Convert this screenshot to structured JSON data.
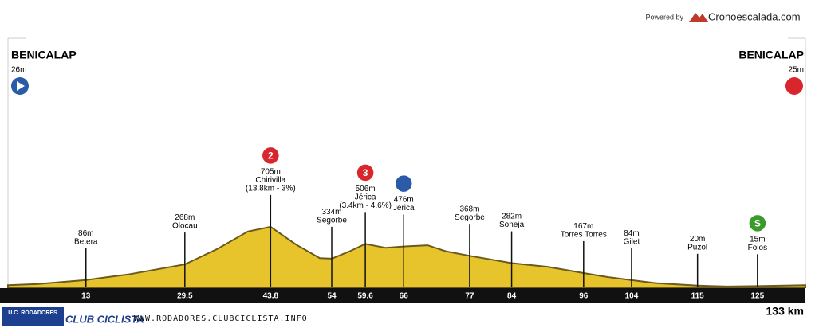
{
  "chart_data": {
    "type": "profile",
    "powered_by": "Powered by",
    "brand": "Cronoescalada.com",
    "start": {
      "name": "BENICALAP",
      "altitude": "26m"
    },
    "finish": {
      "name": "BENICALAP",
      "altitude": "25m"
    },
    "total": "133 km",
    "xlim": [
      0,
      133
    ],
    "ylim": [
      0,
      2880
    ],
    "color": "#e8c42c",
    "x": [
      0,
      5,
      13,
      20,
      29.5,
      35,
      40,
      43.8,
      48,
      52,
      54,
      57,
      59.6,
      63,
      66,
      70,
      73,
      77,
      84,
      90,
      96,
      100,
      104,
      108,
      115,
      120,
      125,
      133
    ],
    "values": [
      26,
      40,
      86,
      150,
      268,
      450,
      650,
      705,
      500,
      340,
      334,
      420,
      506,
      460,
      476,
      490,
      420,
      368,
      282,
      240,
      167,
      120,
      84,
      50,
      20,
      10,
      15,
      25
    ],
    "waypoints": [
      {
        "km": 13,
        "lines": [
          "86m",
          "Betera"
        ]
      },
      {
        "km": 29.5,
        "lines": [
          "268m",
          "Olocau"
        ]
      },
      {
        "km": 43.8,
        "lines": [
          "705m",
          "Chirivilla",
          "(13.8km - 3%)"
        ],
        "badge": "2",
        "badge_color": "#d9262c"
      },
      {
        "km": 54,
        "lines": [
          "334m",
          "Segorbe"
        ]
      },
      {
        "km": 59.6,
        "lines": [
          "506m",
          "Jérica",
          "(3.4km - 4.6%)"
        ],
        "badge": "3",
        "badge_color": "#d9262c"
      },
      {
        "km": 66,
        "lines": [
          "476m",
          "Jérica"
        ],
        "badge": "",
        "badge_color": "#2a5aa8"
      },
      {
        "km": 77,
        "lines": [
          "368m",
          "Segorbe"
        ]
      },
      {
        "km": 84,
        "lines": [
          "282m",
          "Soneja"
        ]
      },
      {
        "km": 96,
        "lines": [
          "167m",
          "Torres Torres"
        ]
      },
      {
        "km": 104,
        "lines": [
          "84m",
          "Gilet"
        ]
      },
      {
        "km": 115,
        "lines": [
          "20m",
          "Puzol"
        ]
      },
      {
        "km": 125,
        "lines": [
          "15m",
          "Foios"
        ],
        "badge": "S",
        "badge_color": "#3a9a2a"
      }
    ],
    "footer": {
      "club_top": "U.C. RODADORES",
      "club_bottom": "CLUB CICLISTA",
      "url": "WWW.RODADORES.CLUBCICLISTA.INFO"
    }
  }
}
